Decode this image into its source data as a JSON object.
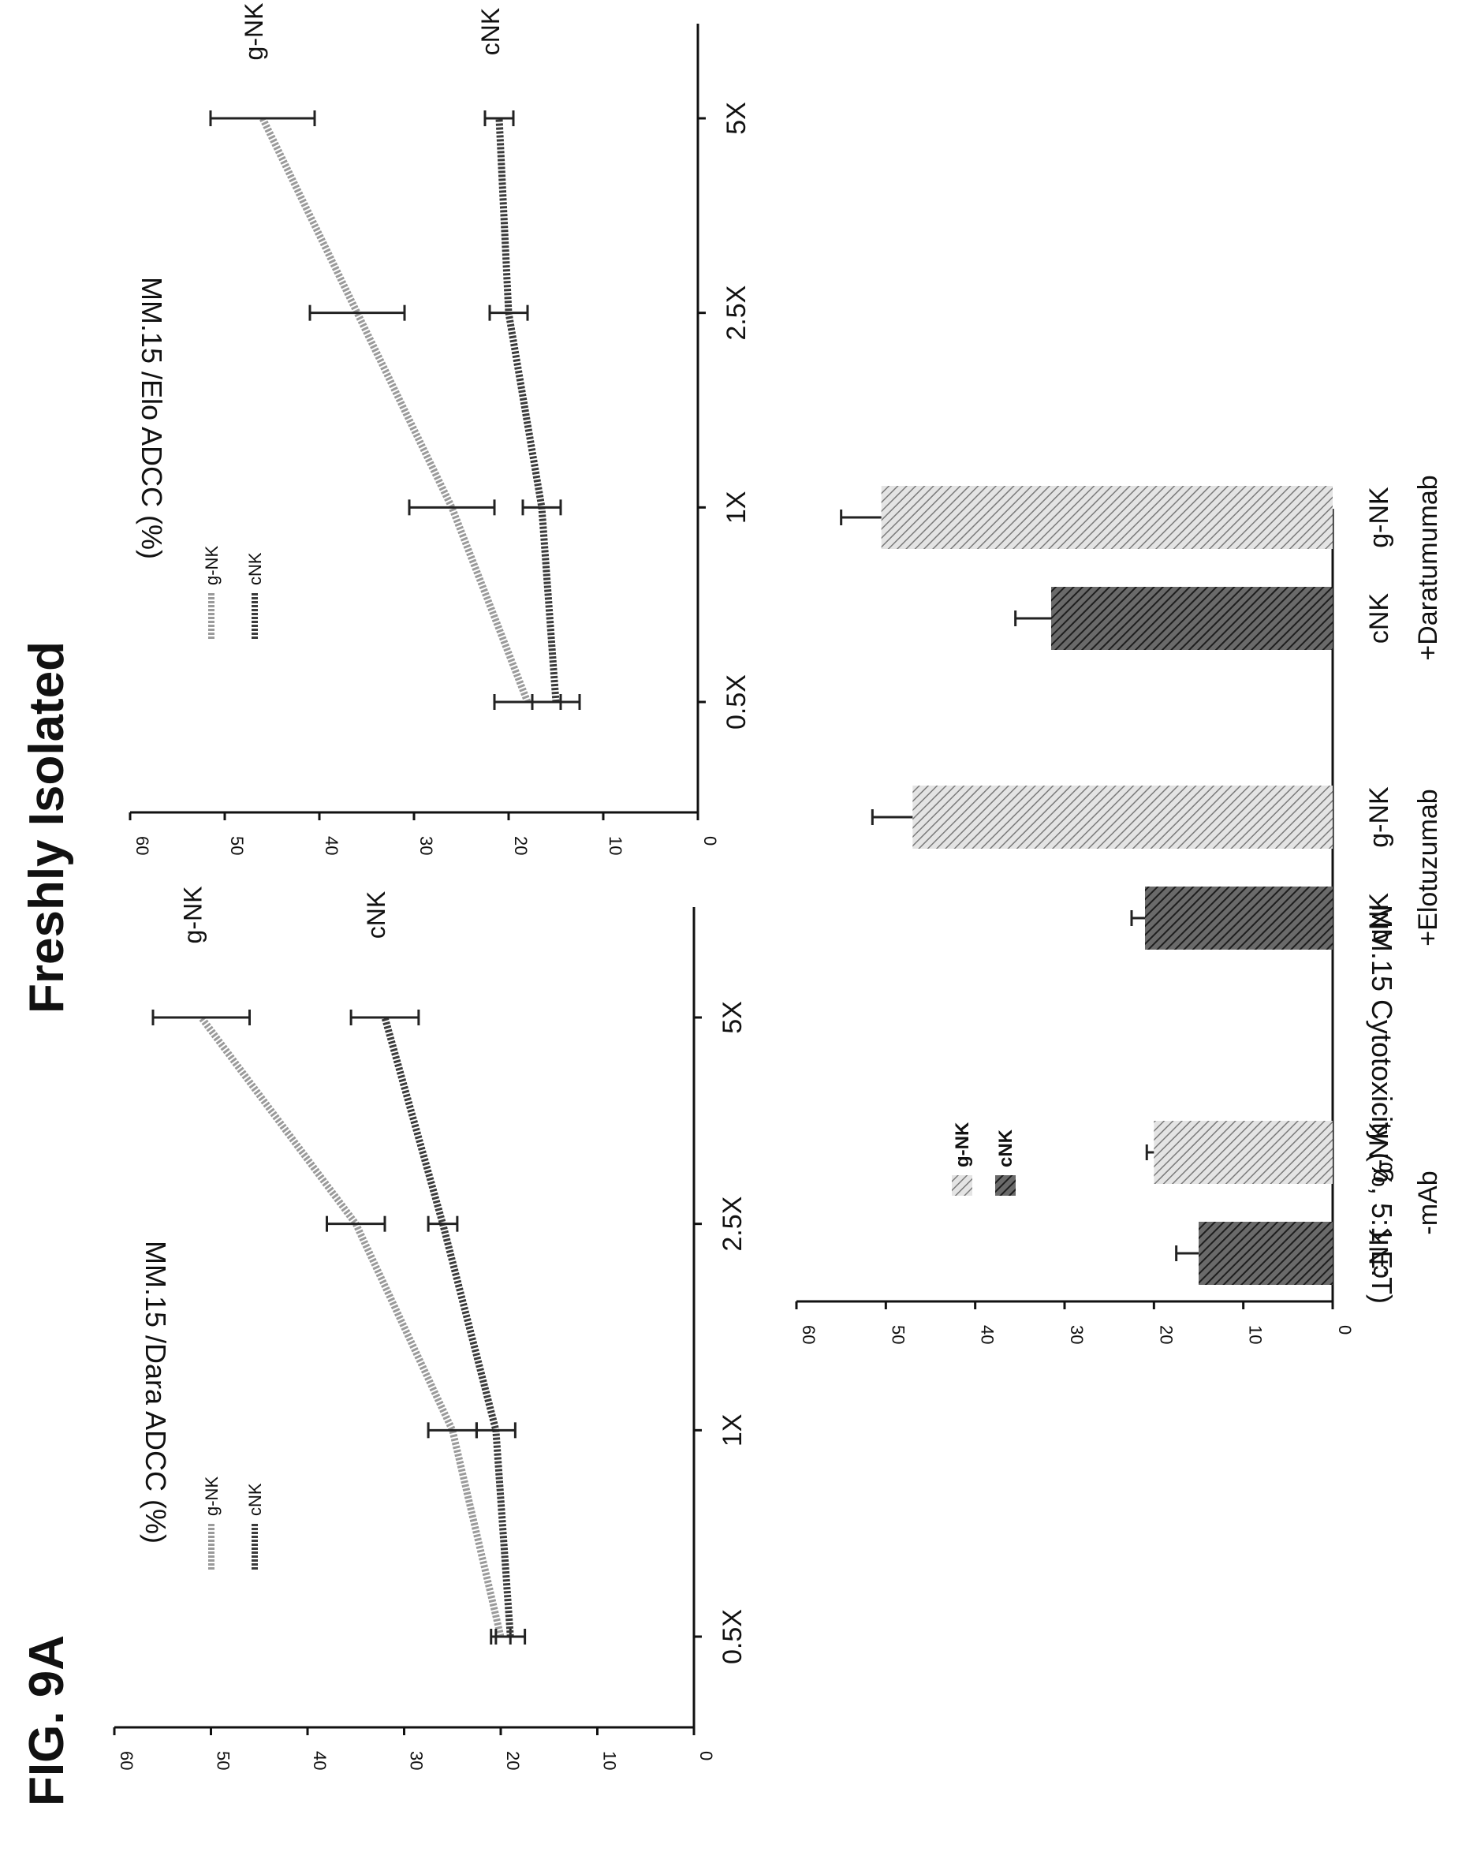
{
  "figure": {
    "label": "FIG. 9A",
    "title": "Freshly Isolated"
  },
  "colors": {
    "cNK": "#3a3a3a",
    "gNK": "#9a9a9a",
    "axis": "#111111"
  },
  "chart_data": [
    {
      "type": "line",
      "ylabel": "MM.15 /Dara ADCC (%)",
      "ylim": [
        0,
        60
      ],
      "yticks": [
        "0",
        "10",
        "20",
        "30",
        "40",
        "50",
        "60"
      ],
      "categories": [
        "0.5X",
        "1X",
        "2.5X",
        "5X"
      ],
      "legend_position": "top-left",
      "series": [
        {
          "name": "g-NK",
          "values": [
            20,
            25,
            35,
            51
          ],
          "errors": [
            1,
            2.5,
            3,
            5
          ]
        },
        {
          "name": "cNK",
          "values": [
            19,
            20.5,
            26,
            32
          ],
          "errors": [
            1.5,
            2,
            1.5,
            3.5
          ]
        }
      ],
      "annotations": [
        "g-NK",
        "cNK"
      ]
    },
    {
      "type": "line",
      "ylabel": "MM.15 /Elo ADCC (%)",
      "ylim": [
        0,
        60
      ],
      "yticks": [
        "0",
        "10",
        "20",
        "30",
        "40",
        "50",
        "60"
      ],
      "categories": [
        "0.5X",
        "1X",
        "2.5X",
        "5X"
      ],
      "legend_position": "top-left",
      "series": [
        {
          "name": "g-NK",
          "values": [
            18,
            26,
            36,
            46
          ],
          "errors": [
            3.5,
            4.5,
            5,
            5.5
          ]
        },
        {
          "name": "cNK",
          "values": [
            15,
            16.5,
            20,
            21
          ],
          "errors": [
            2.5,
            2,
            2,
            1.5
          ]
        }
      ],
      "annotations": [
        "g-NK",
        "cNK"
      ]
    },
    {
      "type": "bar",
      "ylabel": "MM.15 Cytotoxicity (%, 5:1 E:T)",
      "ylim": [
        0,
        60
      ],
      "yticks": [
        "0",
        "10",
        "20",
        "30",
        "40",
        "50",
        "60"
      ],
      "groups": [
        {
          "label": "-mAb",
          "bar_labels": [
            "cNK",
            "g-NK"
          ]
        },
        {
          "label": "+Elotuzumab",
          "bar_labels": [
            "cNK",
            "g-NK"
          ]
        },
        {
          "label": "+Daratumumab",
          "bar_labels": [
            "cNK",
            "g-NK"
          ]
        }
      ],
      "series": [
        {
          "name": "cNK",
          "values": [
            15,
            21,
            31.5
          ],
          "errors": [
            2.5,
            1.5,
            4
          ]
        },
        {
          "name": "g-NK",
          "values": [
            20,
            47,
            50.5
          ],
          "errors": [
            0.8,
            4.5,
            4.5
          ]
        }
      ],
      "legend_position": "top-left"
    }
  ]
}
